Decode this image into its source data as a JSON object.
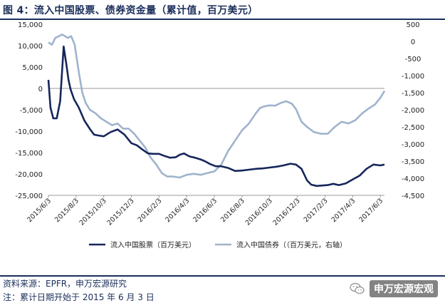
{
  "title": "图 4：流入中国股票、债券资金量（累计值，百万美元）",
  "source_note": "资料来源：EPFR，申万宏源研究",
  "footnote": "注：累计日期开始于 2015 年 6 月 3 日",
  "watermark": {
    "text": "申万宏源宏观",
    "icon": "wechat-icon"
  },
  "colors": {
    "series_equity": "#16265c",
    "series_bond": "#9fb3cc",
    "title": "#1b2f5b"
  },
  "chart_data": {
    "type": "line",
    "title": "图 4：流入中国股票、债券资金量（累计值，百万美元）",
    "x_categories": [
      "2015/6/3",
      "2015/8/3",
      "2015/10/3",
      "2015/12/3",
      "2016/2/3",
      "2016/4/3",
      "2016/6/3",
      "2016/8/3",
      "2016/10/3",
      "2016/12/3",
      "2017/2/3",
      "2017/4/3",
      "2017/6/3"
    ],
    "x_range": [
      0,
      24.3
    ],
    "y_left": {
      "min": -25000,
      "max": 15000,
      "step": 5000,
      "tick_labels": [
        "15,000",
        "10,000",
        "5,000",
        "0",
        "-5,000",
        "-10,000",
        "-15,000",
        "-20,000",
        "-25,000"
      ]
    },
    "y_right": {
      "min": -4500,
      "max": 500,
      "step": 500,
      "tick_labels": [
        "500",
        "0",
        "-500",
        "-1,000",
        "-1,500",
        "-2,000",
        "-2,500",
        "-3,000",
        "-3,500",
        "-4,000",
        "-4,500"
      ]
    },
    "legend_position": "bottom",
    "grid": false,
    "series": [
      {
        "name": "流入中国股票（百万美元）",
        "axis": "left",
        "x": [
          0,
          0.15,
          0.35,
          0.6,
          0.85,
          1.1,
          1.3,
          1.45,
          1.6,
          1.85,
          2.2,
          2.6,
          3.0,
          3.3,
          3.6,
          4.0,
          4.5,
          5.0,
          5.5,
          6.0,
          6.4,
          6.8,
          7.2,
          7.6,
          8.0,
          8.4,
          8.8,
          9.2,
          9.5,
          9.8,
          10.2,
          10.6,
          11.0,
          11.3,
          11.7,
          12.1,
          12.5,
          13.0,
          13.5,
          14.0,
          14.5,
          15.0,
          15.5,
          16.0,
          16.5,
          17.0,
          17.5,
          17.9,
          18.3,
          18.7,
          19.0,
          19.4,
          19.8,
          20.2,
          20.6,
          21.0,
          21.5,
          22.0,
          22.5,
          23.0,
          23.5,
          24.0,
          24.3
        ],
        "y": [
          2000,
          -4500,
          -7000,
          -7000,
          -3000,
          9800,
          5500,
          2000,
          -200,
          -2500,
          -4500,
          -7500,
          -9500,
          -10800,
          -11000,
          -11200,
          -10200,
          -9600,
          -10800,
          -12800,
          -13300,
          -14300,
          -15200,
          -15300,
          -15300,
          -15800,
          -16200,
          -16100,
          -15500,
          -15200,
          -15900,
          -16200,
          -16600,
          -17000,
          -17700,
          -18200,
          -18200,
          -18600,
          -19300,
          -19200,
          -19000,
          -18800,
          -18700,
          -18500,
          -18300,
          -18000,
          -17600,
          -17800,
          -18800,
          -21500,
          -22500,
          -22800,
          -22700,
          -22600,
          -22300,
          -22600,
          -22200,
          -21300,
          -20400,
          -18800,
          -17800,
          -18000,
          -17800
        ]
      },
      {
        "name": "流入中国债券（（百万美元，右轴）",
        "axis": "right",
        "x": [
          0,
          0.25,
          0.5,
          1.0,
          1.4,
          1.65,
          1.9,
          2.2,
          2.45,
          2.7,
          3.0,
          3.4,
          3.8,
          4.2,
          4.6,
          5.0,
          5.4,
          5.8,
          6.2,
          6.6,
          7.0,
          7.4,
          7.8,
          8.2,
          8.6,
          9.0,
          9.5,
          10.0,
          10.5,
          11.0,
          11.5,
          12.0,
          12.5,
          13.0,
          13.5,
          14.0,
          14.5,
          15.0,
          15.3,
          15.6,
          16.0,
          16.4,
          16.8,
          17.2,
          17.6,
          17.9,
          18.3,
          18.7,
          19.2,
          19.7,
          20.2,
          20.7,
          21.2,
          21.7,
          22.2,
          22.7,
          23.2,
          23.6,
          24.0,
          24.3
        ],
        "y": [
          -30,
          -100,
          100,
          200,
          100,
          150,
          -100,
          -900,
          -1500,
          -1800,
          -2000,
          -2100,
          -2250,
          -2350,
          -2450,
          -2400,
          -2550,
          -2550,
          -2700,
          -2900,
          -3100,
          -3400,
          -3600,
          -3850,
          -3950,
          -3950,
          -3980,
          -3900,
          -3870,
          -3900,
          -3850,
          -3800,
          -3600,
          -3200,
          -2900,
          -2600,
          -2400,
          -2100,
          -1950,
          -1900,
          -1870,
          -1880,
          -1800,
          -1750,
          -1820,
          -1980,
          -2350,
          -2500,
          -2650,
          -2700,
          -2700,
          -2500,
          -2350,
          -2400,
          -2300,
          -2100,
          -1950,
          -1850,
          -1650,
          -1450
        ]
      }
    ]
  }
}
